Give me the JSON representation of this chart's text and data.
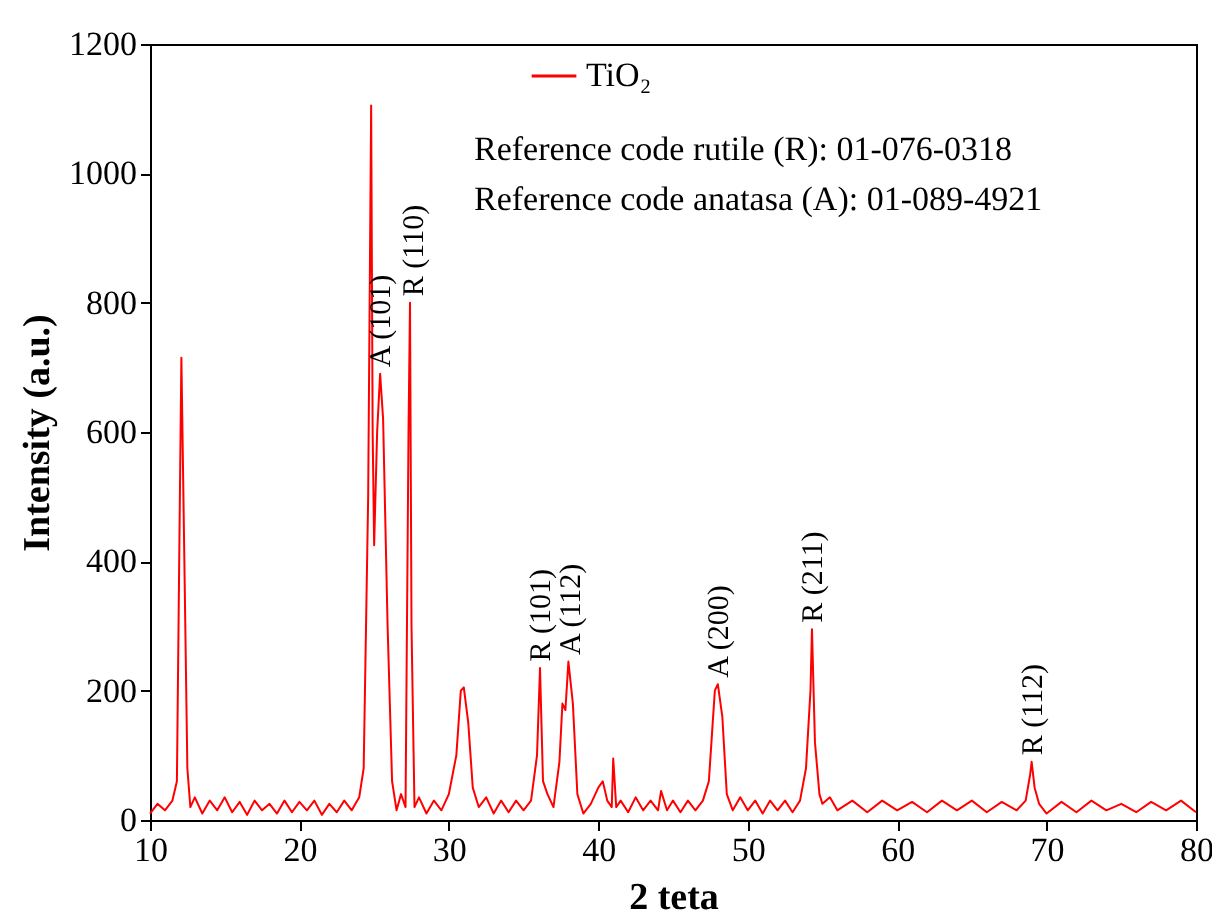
{
  "chart_data": {
    "type": "line",
    "xlabel": "2 teta",
    "ylabel": "Intensity (a.u.)",
    "xlim": [
      10,
      80
    ],
    "ylim": [
      0,
      1200
    ],
    "xticks": [
      10,
      20,
      30,
      40,
      50,
      60,
      70,
      80
    ],
    "yticks": [
      0,
      200,
      400,
      600,
      800,
      1000,
      1200
    ],
    "grid": false,
    "legend": "top",
    "marker": "none",
    "line_style": "solid",
    "annotations": [
      "Reference code rutile (R): 01-076-0318",
      "Reference code anatasa (A): 01-089-4921",
      {
        "text": "A (101)",
        "x": 25.4,
        "y": 700
      },
      {
        "text": "R (110)",
        "x": 27.6,
        "y": 810
      },
      {
        "text": "R (101)",
        "x": 36.1,
        "y": 245
      },
      {
        "text": "A (112)",
        "x": 38.1,
        "y": 255
      },
      {
        "text": "A (200)",
        "x": 48.0,
        "y": 220
      },
      {
        "text": "R (211)",
        "x": 54.3,
        "y": 305
      },
      {
        "text": "R (112)",
        "x": 69.0,
        "y": 100
      }
    ],
    "series": [
      {
        "name": "TiO₂",
        "color": "#ff0000",
        "x": [
          10,
          10.5,
          11,
          11.5,
          11.8,
          12.0,
          12.1,
          12.3,
          12.5,
          12.7,
          13,
          13.5,
          14,
          14.5,
          15,
          15.5,
          16,
          16.5,
          17,
          17.5,
          18,
          18.5,
          19,
          19.5,
          20,
          20.5,
          21,
          21.5,
          22,
          22.5,
          23,
          23.5,
          24,
          24.3,
          24.6,
          24.8,
          24.9,
          25.0,
          25.2,
          25.4,
          25.6,
          25.9,
          26.2,
          26.5,
          26.8,
          27.1,
          27.3,
          27.4,
          27.5,
          27.7,
          28,
          28.5,
          29,
          29.5,
          30,
          30.5,
          30.8,
          31.0,
          31.3,
          31.6,
          32,
          32.5,
          33,
          33.5,
          34,
          34.5,
          35,
          35.5,
          35.9,
          36.1,
          36.3,
          36.6,
          37,
          37.4,
          37.6,
          37.8,
          38.0,
          38.3,
          38.6,
          39,
          39.5,
          40.0,
          40.3,
          40.6,
          40.9,
          41.0,
          41.2,
          41.5,
          42,
          42.5,
          43,
          43.5,
          44,
          44.2,
          44.6,
          45,
          45.5,
          46,
          46.5,
          47,
          47.4,
          47.8,
          48.0,
          48.3,
          48.6,
          49,
          49.5,
          50,
          50.5,
          51,
          51.5,
          52,
          52.5,
          53,
          53.5,
          53.9,
          54.2,
          54.3,
          54.5,
          54.8,
          55,
          55.5,
          56,
          57,
          58,
          59,
          60,
          61,
          62,
          63,
          64,
          65,
          66,
          67,
          68,
          68.6,
          68.9,
          69.0,
          69.2,
          69.5,
          70,
          71,
          72,
          73,
          74,
          75,
          76,
          77,
          78,
          79,
          80
        ],
        "values": [
          10,
          25,
          15,
          30,
          60,
          500,
          715,
          400,
          80,
          20,
          35,
          10,
          30,
          15,
          35,
          12,
          28,
          8,
          30,
          15,
          25,
          10,
          30,
          12,
          28,
          15,
          30,
          8,
          25,
          12,
          30,
          15,
          35,
          80,
          500,
          1105,
          600,
          425,
          600,
          690,
          620,
          300,
          60,
          15,
          40,
          20,
          600,
          800,
          300,
          20,
          35,
          10,
          30,
          15,
          40,
          100,
          200,
          205,
          150,
          50,
          20,
          35,
          10,
          30,
          12,
          30,
          15,
          30,
          100,
          235,
          60,
          40,
          20,
          90,
          180,
          170,
          245,
          180,
          40,
          10,
          25,
          50,
          60,
          30,
          20,
          95,
          20,
          30,
          12,
          35,
          15,
          30,
          15,
          45,
          15,
          30,
          12,
          30,
          15,
          30,
          60,
          200,
          210,
          160,
          40,
          15,
          35,
          15,
          30,
          10,
          30,
          15,
          30,
          12,
          30,
          80,
          200,
          295,
          120,
          40,
          25,
          35,
          15,
          30,
          12,
          30,
          15,
          28,
          12,
          30,
          15,
          30,
          12,
          28,
          15,
          30,
          70,
          90,
          50,
          25,
          10,
          28,
          12,
          30,
          15,
          25,
          12,
          28,
          15,
          30,
          12
        ]
      }
    ]
  }
}
